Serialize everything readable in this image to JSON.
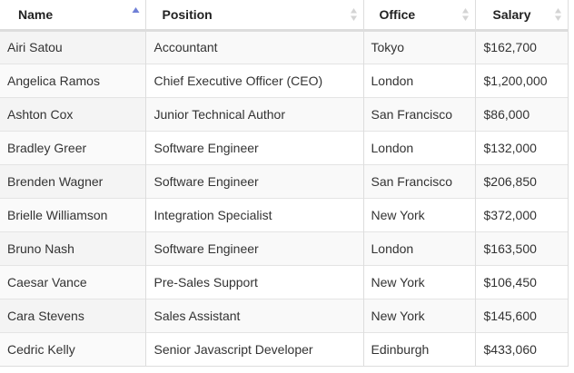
{
  "table": {
    "columns": [
      {
        "label": "Name",
        "sort": "asc-active"
      },
      {
        "label": "Position",
        "sort": "both"
      },
      {
        "label": "Office",
        "sort": "both"
      },
      {
        "label": "Salary",
        "sort": "both"
      }
    ],
    "rows": [
      {
        "name": "Airi Satou",
        "position": "Accountant",
        "office": "Tokyo",
        "salary": "$162,700"
      },
      {
        "name": "Angelica Ramos",
        "position": "Chief Executive Officer (CEO)",
        "office": "London",
        "salary": "$1,200,000"
      },
      {
        "name": "Ashton Cox",
        "position": "Junior Technical Author",
        "office": "San Francisco",
        "salary": "$86,000"
      },
      {
        "name": "Bradley Greer",
        "position": "Software Engineer",
        "office": "London",
        "salary": "$132,000"
      },
      {
        "name": "Brenden Wagner",
        "position": "Software Engineer",
        "office": "San Francisco",
        "salary": "$206,850"
      },
      {
        "name": "Brielle Williamson",
        "position": "Integration Specialist",
        "office": "New York",
        "salary": "$372,000"
      },
      {
        "name": "Bruno Nash",
        "position": "Software Engineer",
        "office": "London",
        "salary": "$163,500"
      },
      {
        "name": "Caesar Vance",
        "position": "Pre-Sales Support",
        "office": "New York",
        "salary": "$106,450"
      },
      {
        "name": "Cara Stevens",
        "position": "Sales Assistant",
        "office": "New York",
        "salary": "$145,600"
      },
      {
        "name": "Cedric Kelly",
        "position": "Senior Javascript Developer",
        "office": "Edinburgh",
        "salary": "$433,060"
      }
    ]
  },
  "colors": {
    "sort_active": "#6f7fd6",
    "sort_inactive": "#d4d4d4",
    "row_stripe": "#f9f9f9",
    "border": "#dddddd"
  },
  "icons": {
    "sort_active": "sort-ascending-icon",
    "sort_inactive": "sort-both-icon"
  }
}
